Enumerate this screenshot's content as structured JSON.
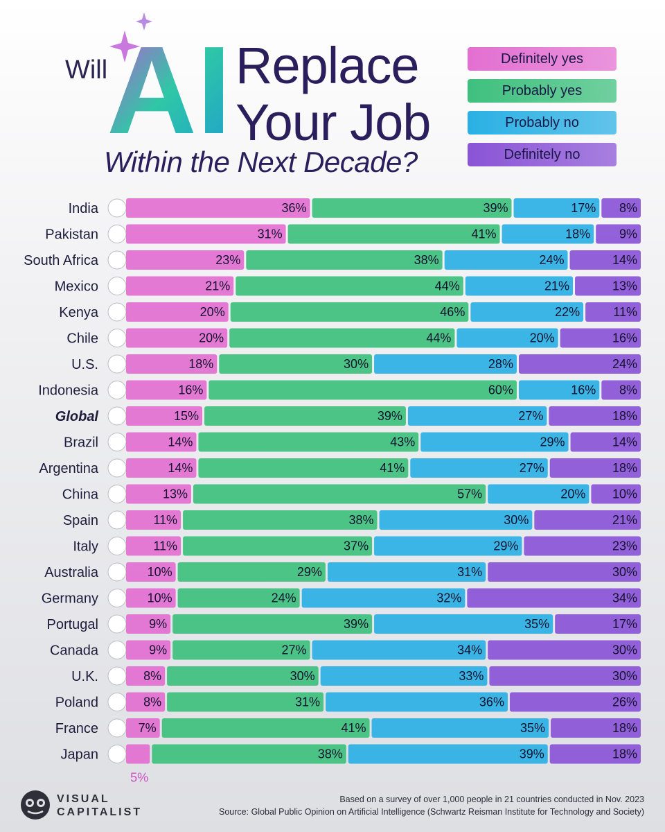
{
  "title": {
    "will": "Will",
    "ai": "AI",
    "line1": "Replace",
    "line2": "Your Job",
    "subtitle": "Within the Next Decade?"
  },
  "legend": [
    {
      "label": "Definitely yes",
      "color": "#e36fd1"
    },
    {
      "label": "Probably yes",
      "color": "#3ec07d"
    },
    {
      "label": "Probably no",
      "color": "#2ab0e4"
    },
    {
      "label": "Definitely no",
      "color": "#8a54d6"
    }
  ],
  "chart_data": {
    "type": "bar",
    "stacked": true,
    "orientation": "horizontal",
    "categories": [
      "India",
      "Pakistan",
      "South Africa",
      "Mexico",
      "Kenya",
      "Chile",
      "U.S.",
      "Indonesia",
      "Global",
      "Brazil",
      "Argentina",
      "China",
      "Spain",
      "Italy",
      "Australia",
      "Germany",
      "Portugal",
      "Canada",
      "U.K.",
      "Poland",
      "France",
      "Japan"
    ],
    "highlight_category": "Global",
    "series": [
      {
        "name": "Definitely yes",
        "color": "#e36fd1",
        "values": [
          36,
          31,
          23,
          21,
          20,
          20,
          18,
          16,
          15,
          14,
          14,
          13,
          11,
          11,
          10,
          10,
          9,
          9,
          8,
          8,
          7,
          5
        ]
      },
      {
        "name": "Probably yes",
        "color": "#3ec07d",
        "values": [
          39,
          41,
          38,
          44,
          46,
          44,
          30,
          60,
          39,
          43,
          41,
          57,
          38,
          37,
          29,
          24,
          39,
          27,
          30,
          31,
          41,
          38
        ]
      },
      {
        "name": "Probably no",
        "color": "#2ab0e4",
        "values": [
          17,
          18,
          24,
          21,
          22,
          20,
          28,
          16,
          27,
          29,
          27,
          20,
          30,
          29,
          31,
          32,
          35,
          34,
          33,
          36,
          35,
          39
        ]
      },
      {
        "name": "Definitely no",
        "color": "#8a54d6",
        "values": [
          8,
          9,
          14,
          13,
          11,
          16,
          24,
          8,
          18,
          14,
          18,
          10,
          21,
          23,
          30,
          34,
          17,
          30,
          30,
          26,
          18,
          18
        ]
      }
    ],
    "value_suffix": "%"
  },
  "footer": {
    "brand_line1": "VISUAL",
    "brand_line2": "CAPITALIST",
    "note": "Based on a survey of over 1,000 people in 21 countries conducted in Nov. 2023",
    "source": "Source: Global Public Opinion on Artificial Intelligence (Schwartz Reisman Institute for Technology and Society)"
  }
}
